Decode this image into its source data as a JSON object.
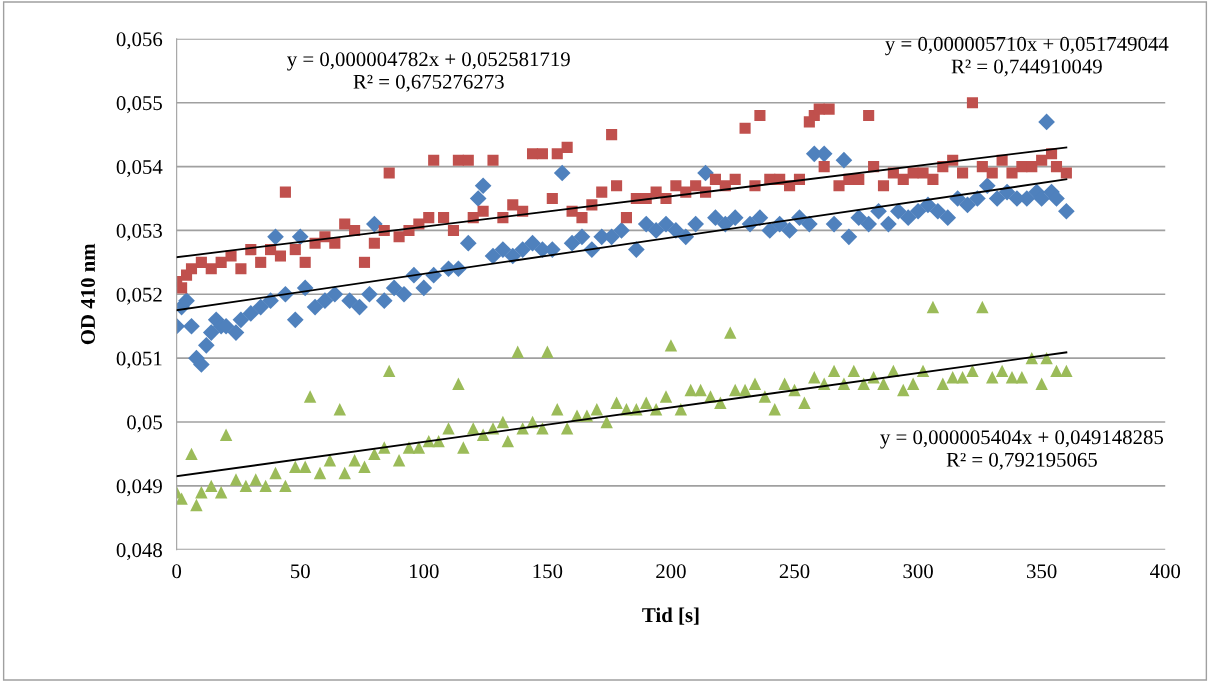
{
  "chart_data": {
    "type": "scatter",
    "xlabel": "Tid [s]",
    "ylabel": "OD 410 nm",
    "grid": "y",
    "legend": false,
    "xlim": [
      0,
      400
    ],
    "xticks": [
      0,
      50,
      100,
      150,
      200,
      250,
      300,
      350,
      400
    ],
    "ylim": [
      0.048,
      0.056
    ],
    "yticks": [
      {
        "value": 0.048,
        "label": "0,048"
      },
      {
        "value": 0.049,
        "label": "0,049"
      },
      {
        "value": 0.05,
        "label": "0,05"
      },
      {
        "value": 0.051,
        "label": "0,051"
      },
      {
        "value": 0.052,
        "label": "0,052"
      },
      {
        "value": 0.053,
        "label": "0,053"
      },
      {
        "value": 0.054,
        "label": "0,054"
      },
      {
        "value": 0.055,
        "label": "0,055"
      },
      {
        "value": 0.056,
        "label": "0,056"
      }
    ],
    "annotations": [
      "y = 0,000004782x + 0,052581719\nR² = 0,675276273",
      "y = 0,000005710x + 0,051749044\nR² = 0,744910049",
      "y = 0,000005404x + 0,049148285\nR² = 0,792195065"
    ],
    "series": [
      {
        "color": "#4f81bd",
        "marker": "diamond",
        "x": [
          0,
          2,
          4,
          6,
          8,
          10,
          12,
          14,
          16,
          18,
          20,
          24,
          26,
          30,
          34,
          38,
          40,
          44,
          48,
          50,
          52,
          56,
          60,
          64,
          70,
          74,
          78,
          80,
          84,
          88,
          92,
          96,
          100,
          104,
          110,
          114,
          118,
          122,
          124,
          128,
          132,
          136,
          140,
          144,
          148,
          152,
          156,
          160,
          164,
          168,
          172,
          176,
          180,
          186,
          190,
          194,
          198,
          202,
          206,
          210,
          214,
          218,
          222,
          226,
          232,
          236,
          240,
          244,
          248,
          252,
          256,
          258,
          262,
          266,
          270,
          272,
          276,
          280,
          284,
          288,
          292,
          296,
          300,
          304,
          308,
          312,
          316,
          320,
          324,
          328,
          332,
          336,
          340,
          344,
          348,
          350,
          352,
          354,
          356,
          360
        ],
        "values": [
          0.0515,
          0.0518,
          0.0519,
          0.0515,
          0.051,
          0.0509,
          0.0512,
          0.0514,
          0.0516,
          0.0515,
          0.0515,
          0.0514,
          0.0516,
          0.0517,
          0.0518,
          0.0519,
          0.0529,
          0.052,
          0.0516,
          0.0529,
          0.0521,
          0.0518,
          0.0519,
          0.052,
          0.0519,
          0.0518,
          0.052,
          0.0531,
          0.0519,
          0.0521,
          0.052,
          0.0523,
          0.0521,
          0.0523,
          0.0524,
          0.0524,
          0.0528,
          0.0535,
          0.0537,
          0.0526,
          0.0527,
          0.0526,
          0.0527,
          0.0528,
          0.0527,
          0.0527,
          0.0539,
          0.0528,
          0.0529,
          0.0527,
          0.0529,
          0.0529,
          0.053,
          0.0527,
          0.0531,
          0.053,
          0.0531,
          0.053,
          0.0529,
          0.0531,
          0.0539,
          0.0532,
          0.0531,
          0.0532,
          0.0531,
          0.0532,
          0.053,
          0.0531,
          0.053,
          0.0532,
          0.0531,
          0.0542,
          0.0542,
          0.0531,
          0.0541,
          0.0529,
          0.0532,
          0.0531,
          0.0533,
          0.0531,
          0.0533,
          0.0532,
          0.0533,
          0.0534,
          0.0533,
          0.0532,
          0.0535,
          0.0534,
          0.0535,
          0.0537,
          0.0535,
          0.0536,
          0.0535,
          0.0535,
          0.0536,
          0.0535,
          0.0547,
          0.0536,
          0.0535,
          0.0533
        ]
      },
      {
        "color": "#c0504d",
        "marker": "square",
        "x": [
          0,
          2,
          4,
          6,
          10,
          14,
          18,
          22,
          26,
          30,
          34,
          38,
          42,
          44,
          48,
          52,
          56,
          60,
          64,
          68,
          72,
          76,
          80,
          84,
          86,
          90,
          94,
          98,
          102,
          104,
          108,
          112,
          114,
          118,
          120,
          124,
          128,
          132,
          136,
          140,
          144,
          148,
          152,
          154,
          158,
          160,
          164,
          168,
          172,
          176,
          178,
          182,
          186,
          190,
          194,
          198,
          202,
          206,
          210,
          214,
          218,
          222,
          226,
          230,
          234,
          236,
          240,
          244,
          248,
          252,
          256,
          258,
          260,
          262,
          264,
          268,
          272,
          276,
          280,
          282,
          286,
          290,
          294,
          298,
          302,
          306,
          310,
          314,
          318,
          322,
          326,
          330,
          334,
          338,
          342,
          346,
          350,
          354,
          356,
          360
        ],
        "values": [
          0.0522,
          0.0521,
          0.0523,
          0.0524,
          0.0525,
          0.0524,
          0.0525,
          0.0526,
          0.0524,
          0.0527,
          0.0525,
          0.0527,
          0.0526,
          0.0536,
          0.0527,
          0.0525,
          0.0528,
          0.0529,
          0.0528,
          0.0531,
          0.053,
          0.0525,
          0.0528,
          0.053,
          0.0539,
          0.0529,
          0.053,
          0.0531,
          0.0532,
          0.0541,
          0.0532,
          0.053,
          0.0541,
          0.0541,
          0.0532,
          0.0533,
          0.0541,
          0.0532,
          0.0534,
          0.0533,
          0.0542,
          0.0542,
          0.0535,
          0.0542,
          0.0543,
          0.0533,
          0.0532,
          0.0534,
          0.0536,
          0.0545,
          0.0537,
          0.0532,
          0.0535,
          0.0535,
          0.0536,
          0.0535,
          0.0537,
          0.0536,
          0.0537,
          0.0536,
          0.0538,
          0.0537,
          0.0538,
          0.0546,
          0.0537,
          0.0548,
          0.0538,
          0.0538,
          0.0537,
          0.0538,
          0.0547,
          0.0548,
          0.0549,
          0.054,
          0.0549,
          0.0537,
          0.0538,
          0.0538,
          0.0548,
          0.054,
          0.0537,
          0.0539,
          0.0538,
          0.0539,
          0.0539,
          0.0538,
          0.054,
          0.0541,
          0.0539,
          0.055,
          0.054,
          0.0539,
          0.0541,
          0.0539,
          0.054,
          0.054,
          0.0541,
          0.0542,
          0.054,
          0.0539
        ]
      },
      {
        "color": "#9bbb59",
        "marker": "triangle",
        "x": [
          0,
          2,
          6,
          8,
          10,
          14,
          18,
          20,
          24,
          28,
          32,
          36,
          40,
          44,
          48,
          52,
          54,
          58,
          62,
          66,
          68,
          72,
          76,
          80,
          84,
          86,
          90,
          94,
          98,
          102,
          106,
          110,
          114,
          116,
          120,
          124,
          128,
          132,
          134,
          138,
          140,
          144,
          148,
          150,
          154,
          158,
          162,
          166,
          170,
          174,
          178,
          182,
          186,
          190,
          194,
          198,
          200,
          204,
          208,
          212,
          216,
          220,
          224,
          226,
          230,
          234,
          238,
          242,
          246,
          250,
          254,
          258,
          262,
          266,
          270,
          274,
          278,
          282,
          286,
          290,
          294,
          298,
          302,
          306,
          310,
          314,
          318,
          322,
          326,
          330,
          334,
          338,
          342,
          346,
          350,
          352,
          356,
          360
        ],
        "values": [
          0.0489,
          0.0488,
          0.0495,
          0.0487,
          0.0489,
          0.049,
          0.0489,
          0.0498,
          0.0491,
          0.049,
          0.0491,
          0.049,
          0.0492,
          0.049,
          0.0493,
          0.0493,
          0.0504,
          0.0492,
          0.0494,
          0.0502,
          0.0492,
          0.0494,
          0.0493,
          0.0495,
          0.0496,
          0.0508,
          0.0494,
          0.0496,
          0.0496,
          0.0497,
          0.0497,
          0.0499,
          0.0506,
          0.0496,
          0.0499,
          0.0498,
          0.0499,
          0.05,
          0.0497,
          0.0511,
          0.0499,
          0.05,
          0.0499,
          0.0511,
          0.0502,
          0.0499,
          0.0501,
          0.0501,
          0.0502,
          0.05,
          0.0503,
          0.0502,
          0.0502,
          0.0503,
          0.0502,
          0.0504,
          0.0512,
          0.0502,
          0.0505,
          0.0505,
          0.0504,
          0.0503,
          0.0514,
          0.0505,
          0.0505,
          0.0506,
          0.0504,
          0.0502,
          0.0506,
          0.0505,
          0.0503,
          0.0507,
          0.0506,
          0.0508,
          0.0506,
          0.0508,
          0.0506,
          0.0507,
          0.0506,
          0.0508,
          0.0505,
          0.0506,
          0.0508,
          0.0518,
          0.0506,
          0.0507,
          0.0507,
          0.0508,
          0.0518,
          0.0507,
          0.0508,
          0.0507,
          0.0507,
          0.051,
          0.0506,
          0.051,
          0.0508,
          0.0508
        ]
      },
      {
        "type": "line",
        "color": "#000000",
        "marker": "none",
        "line_style": "solid",
        "x": [
          0,
          360
        ],
        "values": [
          0.05258,
          0.0543
        ]
      },
      {
        "type": "line",
        "color": "#000000",
        "marker": "none",
        "line_style": "solid",
        "x": [
          0,
          360
        ],
        "values": [
          0.05175,
          0.0538
        ]
      },
      {
        "type": "line",
        "color": "#000000",
        "marker": "none",
        "line_style": "solid",
        "x": [
          0,
          360
        ],
        "values": [
          0.04915,
          0.05109
        ]
      }
    ]
  }
}
